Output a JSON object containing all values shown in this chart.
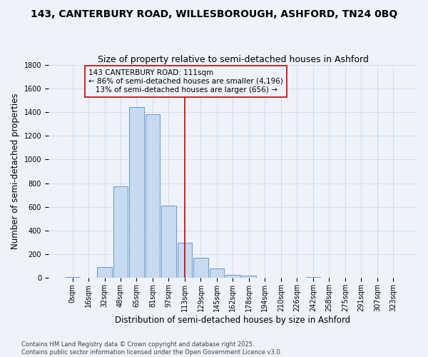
{
  "title_line1": "143, CANTERBURY ROAD, WILLESBOROUGH, ASHFORD, TN24 0BQ",
  "title_line2": "Size of property relative to semi-detached houses in Ashford",
  "xlabel": "Distribution of semi-detached houses by size in Ashford",
  "ylabel": "Number of semi-detached properties",
  "footnote": "Contains HM Land Registry data © Crown copyright and database right 2025.\nContains public sector information licensed under the Open Government Licence v3.0.",
  "bar_labels": [
    "0sqm",
    "16sqm",
    "32sqm",
    "48sqm",
    "65sqm",
    "81sqm",
    "97sqm",
    "113sqm",
    "129sqm",
    "145sqm",
    "162sqm",
    "178sqm",
    "194sqm",
    "210sqm",
    "226sqm",
    "242sqm",
    "258sqm",
    "275sqm",
    "291sqm",
    "307sqm",
    "323sqm"
  ],
  "bar_values": [
    5,
    0,
    95,
    775,
    1445,
    1380,
    610,
    300,
    170,
    80,
    28,
    20,
    0,
    0,
    0,
    5,
    0,
    0,
    0,
    0,
    0
  ],
  "bar_color": "#c8daef",
  "bar_edge_color": "#6699cc",
  "grid_color": "#d0d8e8",
  "bg_color": "#eef2fa",
  "vline_x_index": 7,
  "vline_color": "#cc0000",
  "annotation_line1": "143 CANTERBURY ROAD: 111sqm",
  "annotation_line2": "← 86% of semi-detached houses are smaller (4,196)",
  "annotation_line3": "   13% of semi-detached houses are larger (656) →",
  "annotation_box_color": "#cc0000",
  "ylim": [
    0,
    1800
  ],
  "yticks": [
    0,
    200,
    400,
    600,
    800,
    1000,
    1200,
    1400,
    1600,
    1800
  ],
  "title_fontsize": 10,
  "subtitle_fontsize": 9,
  "axis_label_fontsize": 8.5,
  "tick_fontsize": 7,
  "annotation_fontsize": 7.5,
  "footnote_fontsize": 6
}
